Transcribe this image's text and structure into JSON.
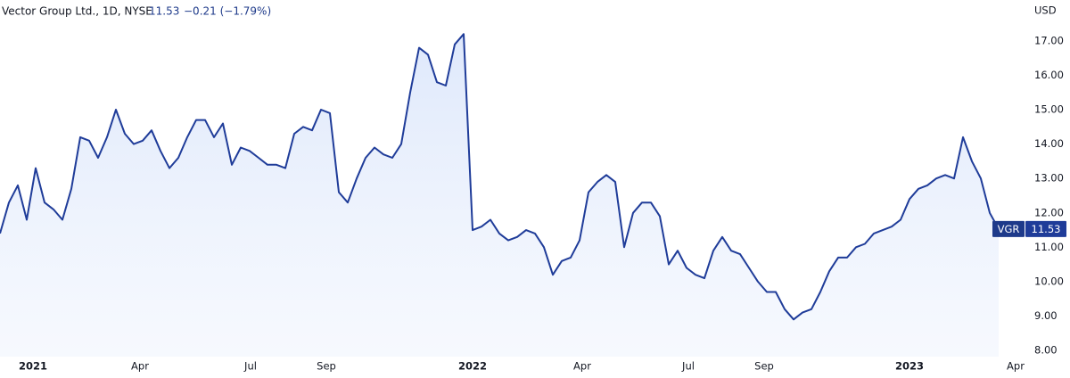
{
  "chart_data": {
    "type": "area",
    "title": "Vector Group Ltd., 1D, NYSE",
    "last_price": 11.53,
    "change": "−0.21 (−1.79%)",
    "y_axis_label": "USD",
    "series": [
      {
        "name": "VGR",
        "color": "#1f3c99",
        "values": [
          11.4,
          12.3,
          12.8,
          11.8,
          13.3,
          12.3,
          12.1,
          11.8,
          12.7,
          14.2,
          14.1,
          13.6,
          14.2,
          15.0,
          14.3,
          14.0,
          14.1,
          14.4,
          13.8,
          13.3,
          13.6,
          14.2,
          14.7,
          14.7,
          14.2,
          14.6,
          13.4,
          13.9,
          13.8,
          13.6,
          13.4,
          13.4,
          13.3,
          14.3,
          14.5,
          14.4,
          15.0,
          14.9,
          12.6,
          12.3,
          13.0,
          13.6,
          13.9,
          13.7,
          13.6,
          14.0,
          15.5,
          16.8,
          16.6,
          15.8,
          15.7,
          16.9,
          17.2,
          11.5,
          11.6,
          11.8,
          11.4,
          11.2,
          11.3,
          11.5,
          11.4,
          11.0,
          10.2,
          10.6,
          10.7,
          11.2,
          12.6,
          12.9,
          13.1,
          12.9,
          11.0,
          12.0,
          12.3,
          12.3,
          11.9,
          10.5,
          10.9,
          10.4,
          10.2,
          10.1,
          10.9,
          11.3,
          10.9,
          10.8,
          10.4,
          10.0,
          9.7,
          9.7,
          9.2,
          8.9,
          9.1,
          9.2,
          9.7,
          10.3,
          10.7,
          10.7,
          11.0,
          11.1,
          11.4,
          11.5,
          11.6,
          11.8,
          12.4,
          12.7,
          12.8,
          13.0,
          13.1,
          13.0,
          14.2,
          13.5,
          13.0,
          12.0,
          11.53
        ]
      }
    ],
    "xlim": [
      0,
      115
    ],
    "xticks": [
      {
        "value": 3.7,
        "label": "2021"
      },
      {
        "value": 15.7,
        "label": "Apr"
      },
      {
        "value": 28.1,
        "label": "Jul"
      },
      {
        "value": 36.6,
        "label": "Sep"
      },
      {
        "value": 53,
        "label": "2022"
      },
      {
        "value": 65.3,
        "label": "Apr"
      },
      {
        "value": 77.2,
        "label": "Jul"
      },
      {
        "value": 85.7,
        "label": "Sep"
      },
      {
        "value": 102,
        "label": "2023"
      },
      {
        "value": 113.9,
        "label": "Apr"
      }
    ],
    "ylim": [
      7.82,
      18.19
    ],
    "yticks": [
      {
        "value": 8,
        "label": "8.00"
      },
      {
        "value": 9,
        "label": "9.00"
      },
      {
        "value": 10,
        "label": "10.00"
      },
      {
        "value": 11,
        "label": "11.00"
      },
      {
        "value": 12,
        "label": "12.00"
      },
      {
        "value": 13,
        "label": "13.00"
      },
      {
        "value": 14,
        "label": "14.00"
      },
      {
        "value": 15,
        "label": "15.00"
      },
      {
        "value": 16,
        "label": "16.00"
      },
      {
        "value": 17,
        "label": "17.00"
      }
    ]
  }
}
